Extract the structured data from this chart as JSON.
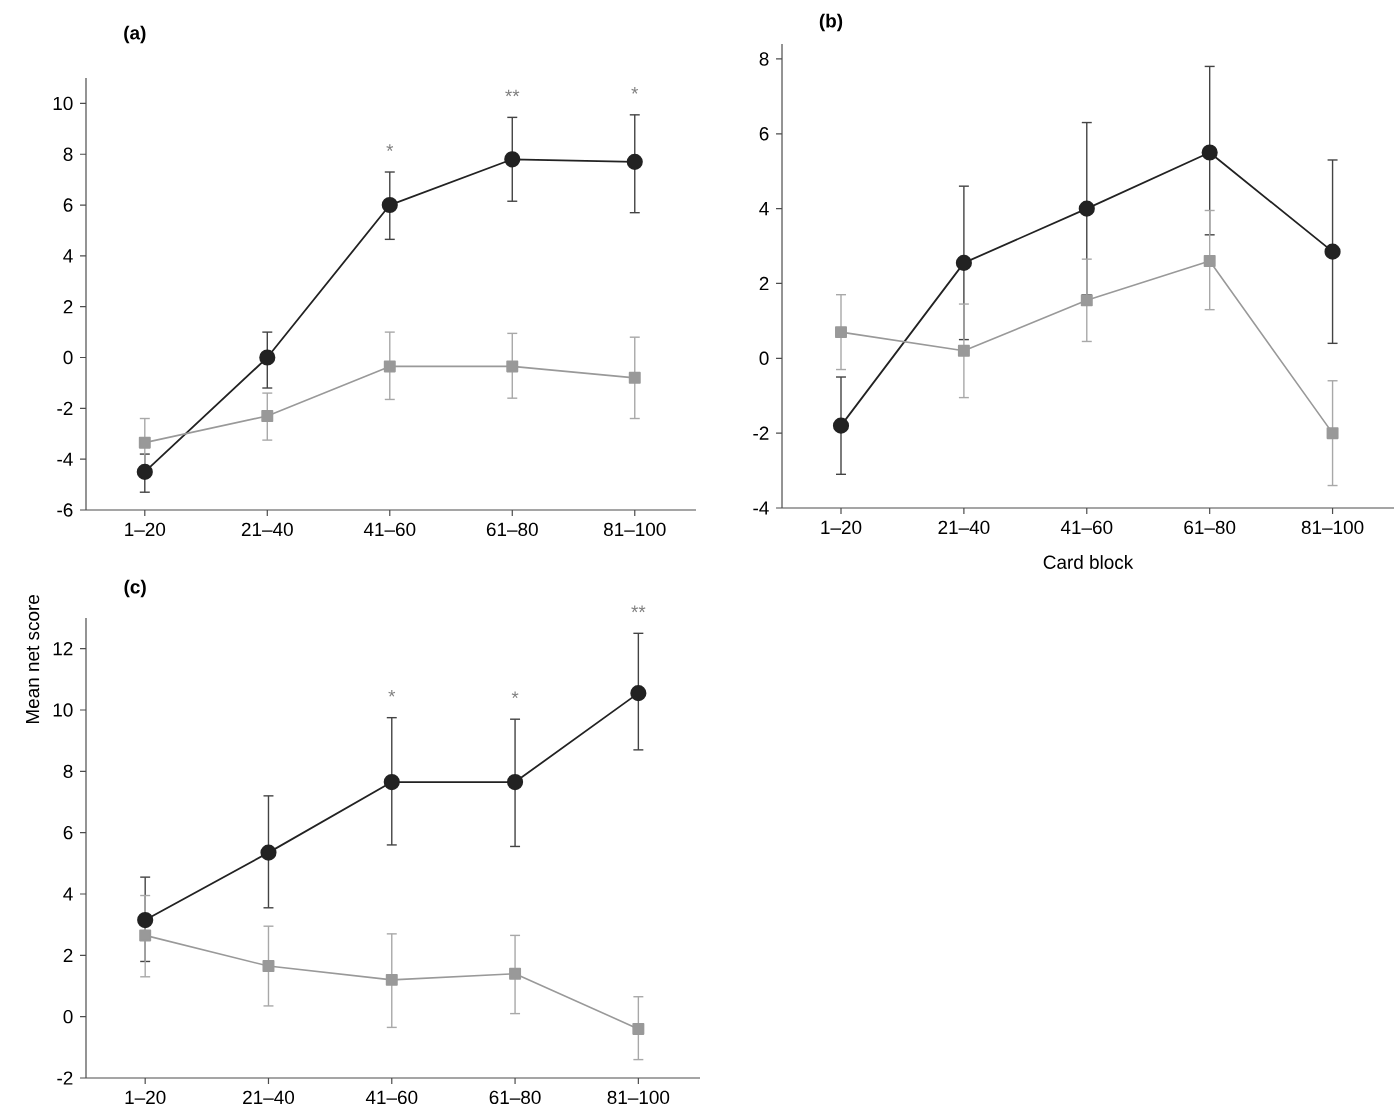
{
  "chart_data": [
    {
      "type": "line",
      "title": "(a)",
      "categories": [
        "1–20",
        "21–40",
        "41–60",
        "61–80",
        "81–100"
      ],
      "ylim": [
        -6,
        11
      ],
      "yticks": [
        -6,
        -4,
        -2,
        0,
        2,
        4,
        6,
        8,
        10
      ],
      "grid": false,
      "series": [
        {
          "color": "#222222",
          "marker": "circle",
          "values": [
            -4.5,
            0,
            6.0,
            7.8,
            7.7
          ],
          "errors": [
            [
              -5.3,
              -3.8
            ],
            [
              -1.2,
              1.0
            ],
            [
              4.65,
              7.3
            ],
            [
              6.15,
              9.45
            ],
            [
              5.7,
              9.55
            ]
          ]
        },
        {
          "color": "#999999",
          "marker": "square",
          "values": [
            -3.35,
            -2.3,
            -0.35,
            -0.35,
            -0.8
          ],
          "errors": [
            [
              -4.3,
              -2.4
            ],
            [
              -3.25,
              -1.4
            ],
            [
              -1.65,
              1.0
            ],
            [
              -1.6,
              0.95
            ],
            [
              -2.4,
              0.8
            ]
          ]
        }
      ],
      "annotations": [
        {
          "text": "*",
          "x": "41–60",
          "y": 7.3
        },
        {
          "text": "**",
          "x": "61–80",
          "y": 9.45
        },
        {
          "text": "*",
          "x": "81–100",
          "y": 9.55
        }
      ]
    },
    {
      "type": "line",
      "title": "(b)",
      "xlabel": "Card block",
      "categories": [
        "1–20",
        "21–40",
        "41–60",
        "61–80",
        "81–100"
      ],
      "ylim": [
        -4,
        8.4
      ],
      "yticks": [
        -4,
        -2,
        0,
        2,
        4,
        6,
        8
      ],
      "grid": false,
      "series": [
        {
          "color": "#222222",
          "marker": "circle",
          "values": [
            -1.8,
            2.55,
            4.0,
            5.5,
            2.85
          ],
          "errors": [
            [
              -3.1,
              -0.5
            ],
            [
              0.5,
              4.6
            ],
            [
              1.7,
              6.3
            ],
            [
              3.3,
              7.8
            ],
            [
              0.4,
              5.3
            ]
          ]
        },
        {
          "color": "#999999",
          "marker": "square",
          "values": [
            0.7,
            0.2,
            1.55,
            2.6,
            -2.0
          ],
          "errors": [
            [
              -0.3,
              1.7
            ],
            [
              -1.05,
              1.45
            ],
            [
              0.45,
              2.65
            ],
            [
              1.3,
              3.95
            ],
            [
              -3.4,
              -0.6
            ]
          ]
        }
      ]
    },
    {
      "type": "line",
      "title": "(c)",
      "ylabel": "Mean net score",
      "categories": [
        "1–20",
        "21–40",
        "41–60",
        "61–80",
        "81–100"
      ],
      "ylim": [
        -2,
        13
      ],
      "yticks": [
        -2,
        0,
        2,
        4,
        6,
        8,
        10,
        12
      ],
      "grid": false,
      "series": [
        {
          "color": "#222222",
          "marker": "circle",
          "values": [
            3.15,
            5.35,
            7.65,
            7.65,
            10.55
          ],
          "errors": [
            [
              1.8,
              4.55
            ],
            [
              3.55,
              7.2
            ],
            [
              5.6,
              9.75
            ],
            [
              5.55,
              9.7
            ],
            [
              8.7,
              12.5
            ]
          ]
        },
        {
          "color": "#999999",
          "marker": "square",
          "values": [
            2.65,
            1.65,
            1.2,
            1.4,
            -0.4
          ],
          "errors": [
            [
              1.3,
              3.95
            ],
            [
              0.35,
              2.95
            ],
            [
              -0.35,
              2.7
            ],
            [
              0.1,
              2.65
            ],
            [
              -1.4,
              0.65
            ]
          ]
        }
      ],
      "annotations": [
        {
          "text": "*",
          "x": "41–60",
          "y": 9.75
        },
        {
          "text": "*",
          "x": "61–80",
          "y": 9.7
        },
        {
          "text": "**",
          "x": "81–100",
          "y": 12.5
        }
      ]
    }
  ]
}
